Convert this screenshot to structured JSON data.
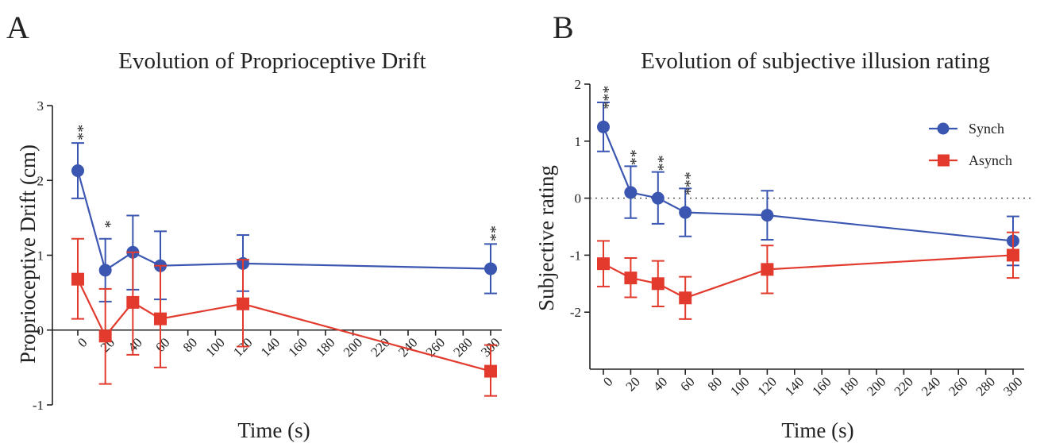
{
  "panels": [
    {
      "letter": "A",
      "title": "Evolution of Proprioceptive Drift",
      "xlabel": "Time (s)",
      "ylabel": "Proprioceptive Drift (cm)"
    },
    {
      "letter": "B",
      "title": "Evolution of subjective illusion rating",
      "xlabel": "Time (s)",
      "ylabel": "Subjective rating"
    }
  ],
  "chart_data": [
    {
      "type": "line",
      "title": "Evolution of Proprioceptive Drift",
      "xlabel": "Time (s)",
      "ylabel": "Proprioceptive Drift (cm)",
      "xlim": [
        0,
        300
      ],
      "ylim": [
        -1,
        3
      ],
      "xticks": [
        0,
        20,
        40,
        60,
        80,
        100,
        120,
        140,
        160,
        180,
        200,
        220,
        240,
        260,
        280,
        300
      ],
      "yticks": [
        -1,
        0,
        1,
        2,
        3
      ],
      "legend": "none",
      "series": [
        {
          "color": "#3a56b0",
          "marker": "circle",
          "x": [
            0,
            20,
            40,
            60,
            120,
            300
          ],
          "y": [
            2.13,
            0.8,
            1.04,
            0.86,
            0.89,
            0.82
          ],
          "err_low": [
            1.76,
            0.38,
            0.54,
            0.41,
            0.52,
            0.49
          ],
          "err_high": [
            2.5,
            1.22,
            1.53,
            1.32,
            1.27,
            1.15
          ]
        },
        {
          "color": "#e23b2e",
          "marker": "square",
          "x": [
            0,
            20,
            40,
            60,
            120,
            300
          ],
          "y": [
            0.68,
            -0.08,
            0.37,
            0.15,
            0.35,
            -0.55
          ],
          "err_low": [
            0.15,
            -0.72,
            -0.33,
            -0.5,
            -0.22,
            -0.88
          ],
          "err_high": [
            1.22,
            0.55,
            1.04,
            0.86,
            0.94,
            -0.2
          ]
        }
      ],
      "annotations": [
        {
          "x": 0,
          "y": 2.6,
          "text": "**"
        },
        {
          "x": 20,
          "y": 1.32,
          "text": "*"
        },
        {
          "x": 300,
          "y": 1.25,
          "text": "**"
        }
      ]
    },
    {
      "type": "line",
      "title": "Evolution of subjective illusion rating",
      "xlabel": "Time (s)",
      "ylabel": "Subjective rating",
      "xlim": [
        0,
        300
      ],
      "ylim": [
        -3,
        2
      ],
      "xticks": [
        0,
        20,
        40,
        60,
        80,
        100,
        120,
        140,
        160,
        180,
        200,
        220,
        240,
        260,
        280,
        300
      ],
      "yticks": [
        -2,
        -1,
        0,
        1,
        2
      ],
      "reference_line": 0,
      "legend": "top-right",
      "series": [
        {
          "name": "Synch",
          "color": "#3a56b0",
          "marker": "circle",
          "x": [
            0,
            20,
            40,
            60,
            120,
            300
          ],
          "y": [
            1.25,
            0.1,
            0.0,
            -0.25,
            -0.3,
            -0.75
          ],
          "err_low": [
            0.82,
            -0.35,
            -0.45,
            -0.67,
            -0.73,
            -1.18
          ],
          "err_high": [
            1.68,
            0.56,
            0.46,
            0.17,
            0.13,
            -0.32
          ]
        },
        {
          "name": "Asynch",
          "color": "#e23b2e",
          "marker": "square",
          "x": [
            0,
            20,
            40,
            60,
            120,
            300
          ],
          "y": [
            -1.15,
            -1.4,
            -1.5,
            -1.75,
            -1.25,
            -1.0
          ],
          "err_low": [
            -1.55,
            -1.74,
            -1.9,
            -2.12,
            -1.67,
            -1.4
          ],
          "err_high": [
            -0.75,
            -1.05,
            -1.1,
            -1.38,
            -0.83,
            -0.6
          ]
        }
      ],
      "annotations": [
        {
          "x": 0,
          "y": 1.78,
          "text": "***"
        },
        {
          "x": 20,
          "y": 0.66,
          "text": "**"
        },
        {
          "x": 40,
          "y": 0.56,
          "text": "**"
        },
        {
          "x": 60,
          "y": 0.27,
          "text": "***"
        }
      ]
    }
  ]
}
